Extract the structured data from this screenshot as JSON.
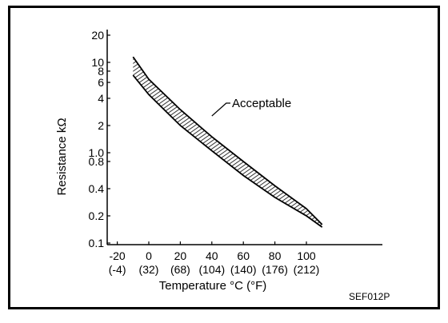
{
  "chart_data": {
    "type": "area",
    "xlabel": "Temperature °C (°F)",
    "ylabel": "Resistance kΩ",
    "y_scale": "log",
    "xlim": [
      -30,
      125
    ],
    "ylim": [
      0.1,
      20
    ],
    "x_ticks": [
      {
        "value": -20,
        "c": "-20",
        "f": "(-4)"
      },
      {
        "value": 0,
        "c": "0",
        "f": "(32)"
      },
      {
        "value": 20,
        "c": "20",
        "f": "(68)"
      },
      {
        "value": 40,
        "c": "40",
        "f": "(104)"
      },
      {
        "value": 60,
        "c": "60",
        "f": "(140)"
      },
      {
        "value": 80,
        "c": "80",
        "f": "(176)"
      },
      {
        "value": 100,
        "c": "100",
        "f": "(212)"
      }
    ],
    "y_ticks": [
      {
        "value": 20,
        "label": "20"
      },
      {
        "value": 10,
        "label": "10"
      },
      {
        "value": 8,
        "label": "8"
      },
      {
        "value": 6,
        "label": "6"
      },
      {
        "value": 4,
        "label": "4"
      },
      {
        "value": 2,
        "label": "2"
      },
      {
        "value": 1,
        "label": "1.0"
      },
      {
        "value": 0.8,
        "label": "0.8"
      },
      {
        "value": 0.4,
        "label": "0.4"
      },
      {
        "value": 0.2,
        "label": "0.2"
      },
      {
        "value": 0.1,
        "label": "0.1"
      }
    ],
    "band_upper": [
      {
        "x": -10,
        "y": 11.5
      },
      {
        "x": 0,
        "y": 6.5
      },
      {
        "x": 20,
        "y": 3.0
      },
      {
        "x": 40,
        "y": 1.5
      },
      {
        "x": 60,
        "y": 0.8
      },
      {
        "x": 80,
        "y": 0.43
      },
      {
        "x": 100,
        "y": 0.24
      },
      {
        "x": 110,
        "y": 0.16
      }
    ],
    "band_lower": [
      {
        "x": -10,
        "y": 7.2
      },
      {
        "x": 0,
        "y": 4.4
      },
      {
        "x": 20,
        "y": 2.0
      },
      {
        "x": 40,
        "y": 1.05
      },
      {
        "x": 60,
        "y": 0.56
      },
      {
        "x": 80,
        "y": 0.32
      },
      {
        "x": 100,
        "y": 0.2
      },
      {
        "x": 110,
        "y": 0.15
      }
    ],
    "annotation": {
      "text": "Acceptable",
      "x": 40,
      "y": 2.55
    },
    "figure_code": "SEF012P",
    "grid": false
  },
  "colors": {
    "ink": "#000000",
    "paper": "#ffffff"
  }
}
